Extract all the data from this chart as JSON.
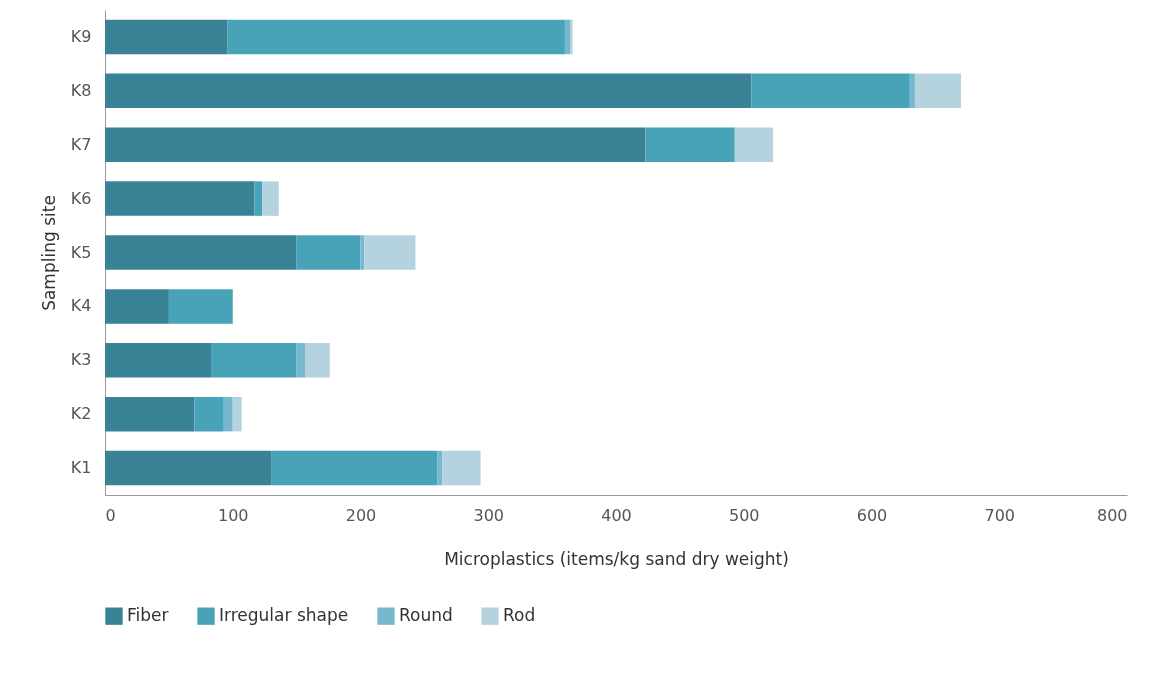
{
  "chart_data": {
    "type": "bar",
    "orientation": "horizontal",
    "stacked": true,
    "xlabel": "Microplastics (items/kg sand dry weight)",
    "ylabel": "Sampling site",
    "categories": [
      "K9",
      "K8",
      "K7",
      "K6",
      "K5",
      "K4",
      "K3",
      "K2",
      "K1"
    ],
    "series": [
      {
        "name": "Fiber",
        "color": "#3a8296",
        "values": [
          96,
          506,
          423,
          117,
          150,
          50,
          83,
          70,
          130
        ]
      },
      {
        "name": "Irregular shape",
        "color": "#48a3b8",
        "values": [
          264,
          124,
          70,
          6,
          50,
          50,
          67,
          23,
          130
        ]
      },
      {
        "name": "Round",
        "color": "#78b8cf",
        "values": [
          4,
          4,
          0,
          0,
          3,
          0,
          7,
          7,
          4
        ]
      },
      {
        "name": "Rod",
        "color": "#b5d3df",
        "values": [
          2,
          36,
          30,
          13,
          40,
          0,
          19,
          7,
          30
        ]
      }
    ],
    "xlim": [
      0,
      800
    ],
    "xticks": [
      0,
      100,
      200,
      300,
      400,
      500,
      600,
      700,
      800
    ],
    "legend": "bottom"
  }
}
